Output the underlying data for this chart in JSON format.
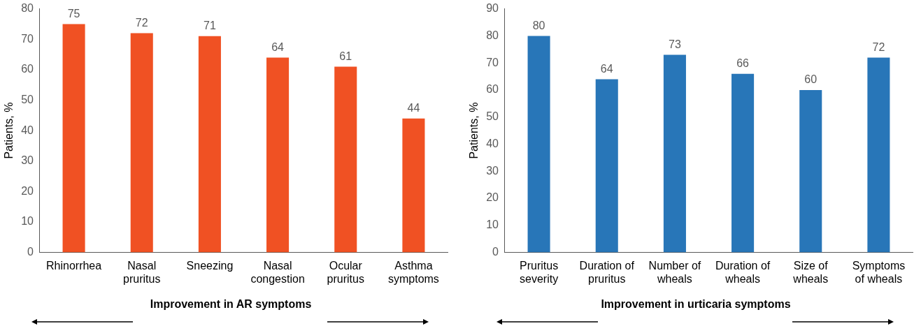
{
  "chart_data": [
    {
      "type": "bar",
      "categories": [
        "Rhinorrhea",
        "Nasal pruritus",
        "Sneezing",
        "Nasal congestion",
        "Ocular pruritus",
        "Asthma symptoms"
      ],
      "values": [
        75,
        72,
        71,
        64,
        61,
        44
      ],
      "color": "#f05123",
      "ylim": [
        0,
        80
      ],
      "yticks": [
        0,
        10,
        20,
        30,
        40,
        50,
        60,
        70,
        80
      ],
      "ylabel": "Patients, %",
      "xlabel": "Improvement in AR symptoms",
      "data_labels": true,
      "grid": false
    },
    {
      "type": "bar",
      "categories": [
        "Pruritus severity",
        "Duration of pruritus",
        "Number of wheals",
        "Duration of wheals",
        "Size of wheals",
        "Symptoms of wheals"
      ],
      "values": [
        80,
        64,
        73,
        66,
        60,
        72
      ],
      "color": "#2876b8",
      "ylim": [
        0,
        90
      ],
      "yticks": [
        0,
        10,
        20,
        30,
        40,
        50,
        60,
        70,
        80,
        90
      ],
      "ylabel": "Patients, %",
      "xlabel": "Improvement in urticaria symptoms",
      "data_labels": true,
      "grid": false
    }
  ]
}
